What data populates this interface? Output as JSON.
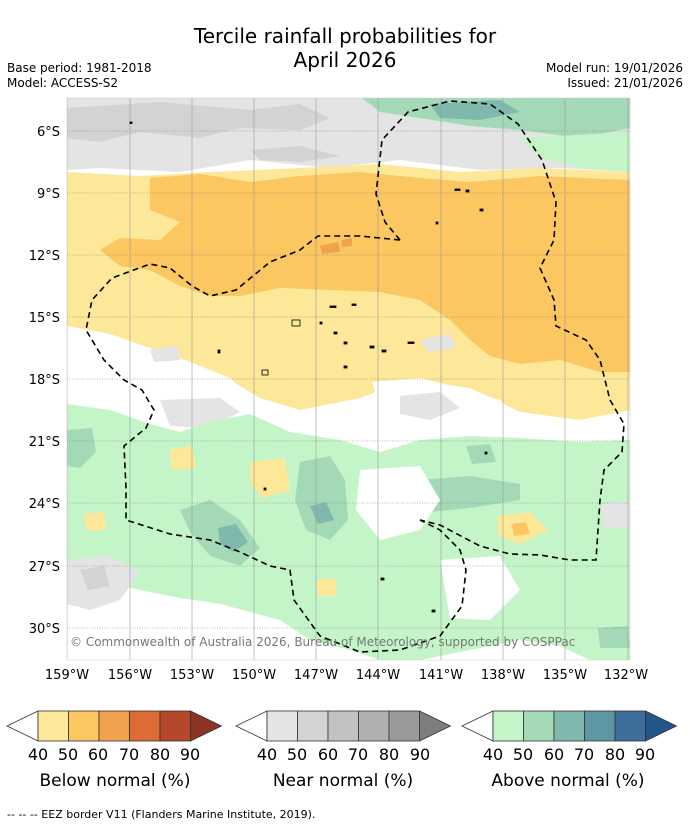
{
  "title": {
    "line1": "Tercile rainfall probabilities for",
    "line2": "April 2026"
  },
  "meta": {
    "base_period": "Base period: 1981-2018",
    "model": "Model: ACCESS-S2",
    "model_run": "Model run: 19/01/2026",
    "issued": "Issued: 21/01/2026"
  },
  "map": {
    "lat_labels": [
      "6°S",
      "9°S",
      "12°S",
      "15°S",
      "18°S",
      "21°S",
      "24°S",
      "27°S",
      "30°S"
    ],
    "lon_labels": [
      "159°W",
      "156°W",
      "153°W",
      "150°W",
      "147°W",
      "144°W",
      "141°W",
      "138°W",
      "135°W",
      "132°W"
    ],
    "copyright": "© Commonwealth of Australia 2026, Bureau of Meteorology, supported by COSPPac"
  },
  "legends": [
    {
      "title": "Below normal (%)",
      "ticks": [
        "40",
        "50",
        "60",
        "70",
        "80",
        "90"
      ],
      "colors": [
        "#fde89a",
        "#fcc660",
        "#f2a14e",
        "#dd6b35",
        "#b4472a",
        "#8c3324"
      ]
    },
    {
      "title": "Near normal (%)",
      "ticks": [
        "40",
        "50",
        "60",
        "70",
        "80",
        "90"
      ],
      "colors": [
        "#e4e4e4",
        "#d3d3d3",
        "#c2c2c2",
        "#b0b0b0",
        "#9a9a9a",
        "#7e7e7e"
      ]
    },
    {
      "title": "Above normal (%)",
      "ticks": [
        "40",
        "50",
        "60",
        "70",
        "80",
        "90"
      ],
      "colors": [
        "#c4f5c8",
        "#a4d9b8",
        "#7fb9ad",
        "#5e97a4",
        "#3d6e9a",
        "#23558b"
      ]
    }
  ],
  "footer": "--  --  -- EEZ border V11 (Flanders Marine Institute, 2019)."
}
